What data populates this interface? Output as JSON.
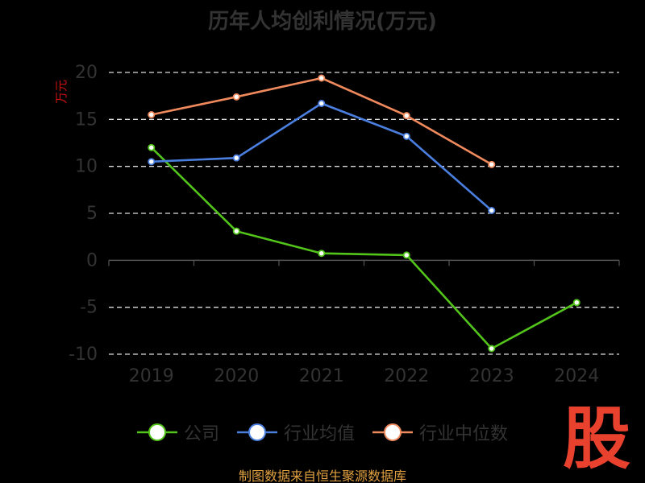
{
  "title": "历年人均创利情况(万元)",
  "y_unit": "万元",
  "source": "制图数据来自恒生聚源数据库",
  "watermark": "股",
  "chart_data": {
    "type": "line",
    "categories": [
      "2019",
      "2020",
      "2021",
      "2022",
      "2023",
      "2024"
    ],
    "ylim": [
      -10,
      20
    ],
    "yticks": [
      -10,
      -5,
      0,
      5,
      10,
      15,
      20
    ],
    "grid": true,
    "legend_position": "bottom",
    "series": [
      {
        "name": "公司",
        "color": "#52c41a",
        "values": [
          12.0,
          3.1,
          0.74,
          0.55,
          -9.4,
          -4.5
        ]
      },
      {
        "name": "行业均值",
        "color": "#4a7fe0",
        "values": [
          10.5,
          10.9,
          16.7,
          13.2,
          5.3,
          null
        ]
      },
      {
        "name": "行业中位数",
        "color": "#f08a5d",
        "values": [
          15.5,
          17.4,
          19.4,
          15.4,
          10.2,
          null
        ]
      }
    ]
  }
}
